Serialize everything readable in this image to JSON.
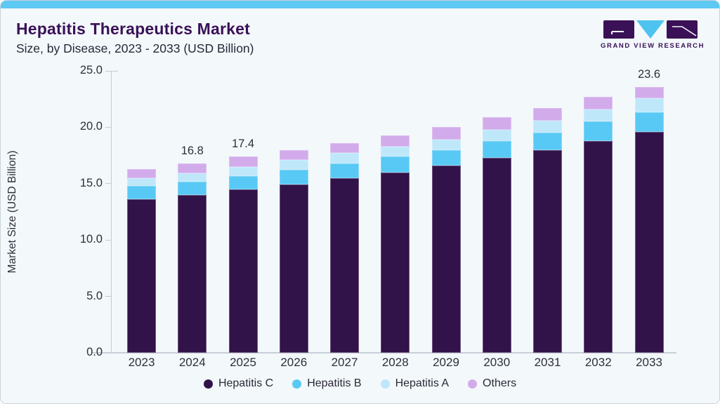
{
  "header": {
    "title": "Hepatitis Therapeutics Market",
    "subtitle": "Size, by Disease, 2023 - 2033 (USD Billion)",
    "logo_text": "GRAND VIEW RESEARCH"
  },
  "colors": {
    "accent_bar": "#5EC9F2",
    "card_background": "#F3F8FB",
    "card_border": "#C9D2D9",
    "title_text": "#3A1157",
    "body_text": "#2D2F3A",
    "axis_line": "#C4CBD2",
    "logo_purple": "#3A1157",
    "logo_blue": "#4FC3EF"
  },
  "chart_data": {
    "type": "bar",
    "stacked": true,
    "title": "Hepatitis Therapeutics Market Size, by Disease, 2023 - 2033 (USD Billion)",
    "categories": [
      "2023",
      "2024",
      "2025",
      "2026",
      "2027",
      "2028",
      "2029",
      "2030",
      "2031",
      "2032",
      "2033"
    ],
    "series": [
      {
        "name": "Hepatitis C",
        "color": "#311349",
        "values": [
          13.6,
          14.0,
          14.5,
          14.9,
          15.5,
          16.0,
          16.6,
          17.3,
          18.0,
          18.8,
          19.6
        ]
      },
      {
        "name": "Hepatitis B",
        "color": "#58C9F4",
        "values": [
          1.2,
          1.2,
          1.2,
          1.3,
          1.3,
          1.4,
          1.4,
          1.5,
          1.5,
          1.7,
          1.7
        ]
      },
      {
        "name": "Hepatitis A",
        "color": "#BEE7FA",
        "values": [
          0.7,
          0.7,
          0.8,
          0.9,
          0.9,
          0.9,
          0.9,
          1.0,
          1.1,
          1.1,
          1.3
        ]
      },
      {
        "name": "Others",
        "color": "#D2ABEB",
        "values": [
          0.8,
          0.9,
          0.9,
          0.9,
          0.9,
          1.0,
          1.1,
          1.1,
          1.1,
          1.1,
          1.0
        ]
      }
    ],
    "totals": [
      16.3,
      16.8,
      17.4,
      18.0,
      18.6,
      19.3,
      20.0,
      20.9,
      21.7,
      22.7,
      23.6
    ],
    "bar_labels": [
      "",
      "16.8",
      "17.4",
      "",
      "",
      "",
      "",
      "",
      "",
      "",
      "23.6"
    ],
    "ylabel": "Market Size (USD Billion)",
    "yticks": [
      0,
      5,
      10,
      15,
      20,
      25
    ],
    "ytick_format_decimals": 1,
    "ylim": [
      0,
      25
    ],
    "grid": false,
    "legend_position": "bottom"
  }
}
